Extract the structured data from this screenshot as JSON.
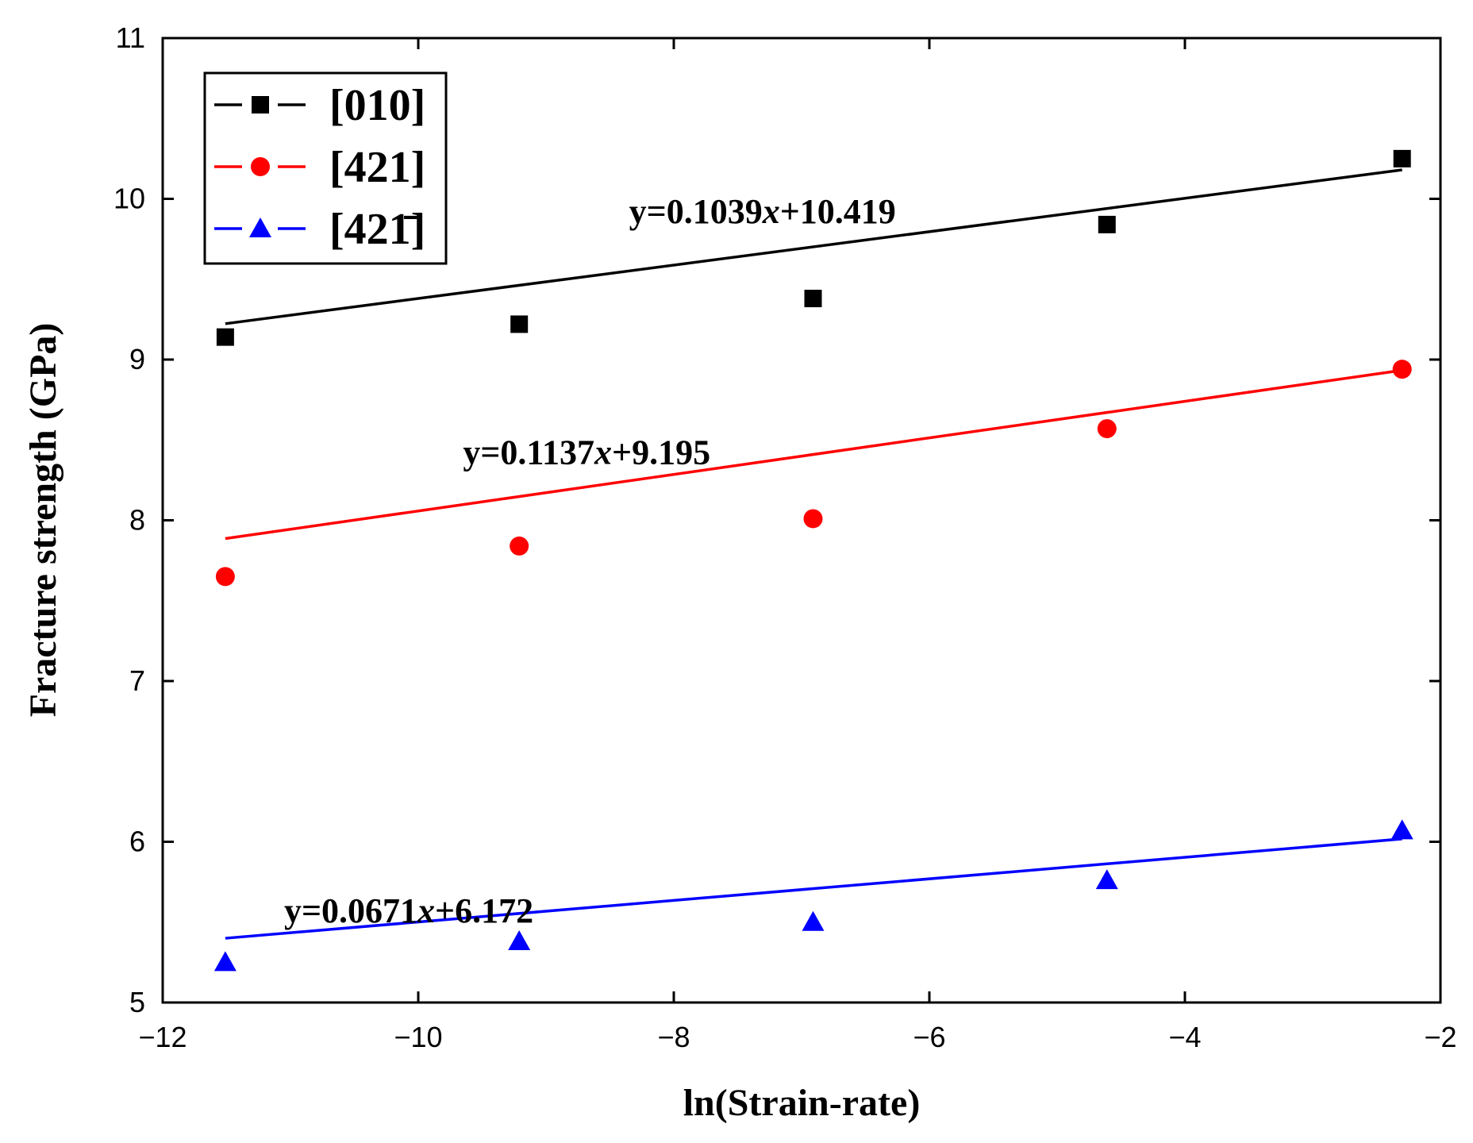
{
  "chart_data": {
    "type": "scatter",
    "title": "",
    "xlabel": "ln(Strain-rate)",
    "ylabel": "Fracture strength (GPa)",
    "xlim": [
      -12,
      -2
    ],
    "ylim": [
      5,
      11
    ],
    "x_ticks": [
      -12,
      -10,
      -8,
      -6,
      -4,
      -2
    ],
    "y_ticks": [
      5,
      6,
      7,
      8,
      9,
      10,
      11
    ],
    "x_tick_labels": [
      "−12",
      "−10",
      "−8",
      "−6",
      "−4",
      "−2"
    ],
    "y_tick_labels": [
      "5",
      "6",
      "7",
      "8",
      "9",
      "10",
      "11"
    ],
    "grid": false,
    "legend_position": "top-left",
    "x": [
      -11.51,
      -9.21,
      -6.91,
      -4.61,
      -2.3
    ],
    "series": [
      {
        "name": "[010]",
        "color": "#000000",
        "marker": "square",
        "values": [
          9.14,
          9.22,
          9.38,
          9.84,
          10.25
        ],
        "fit": {
          "slope": 0.1039,
          "intercept": 10.419,
          "label": "y=0.1039x+10.419"
        }
      },
      {
        "name": "[421]",
        "color": "#ff0000",
        "marker": "circle",
        "values": [
          7.65,
          7.84,
          8.01,
          8.57,
          8.94
        ],
        "fit": {
          "slope": 0.1137,
          "intercept": 9.195,
          "label": "y=0.1137x+9.195"
        }
      },
      {
        "name": "[421̄]",
        "color": "#0000ff",
        "marker": "triangle",
        "values": [
          5.25,
          5.38,
          5.5,
          5.76,
          6.07
        ],
        "fit": {
          "slope": 0.0671,
          "intercept": 6.172,
          "label": "y=0.0671x+6.172"
        }
      }
    ]
  }
}
